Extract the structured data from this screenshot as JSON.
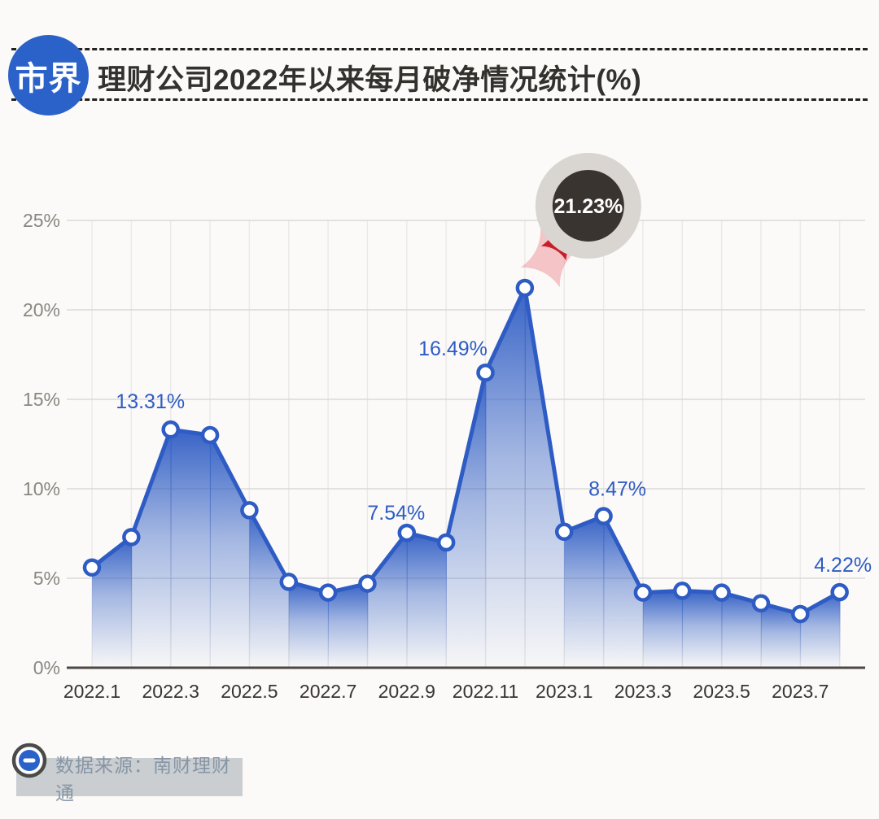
{
  "header": {
    "logo_text": "市界",
    "title": "理财公司2022年以来每月破净情况统计(%)"
  },
  "footer": {
    "source_label": "数据来源：南财理财通"
  },
  "colors": {
    "line": "#2e5cc4",
    "label": "#2e5cc4",
    "logo_blue": "#2b62c9",
    "callout_ring": "#d9d6d1",
    "callout_inner": "#3a3430",
    "callout_text": "#ffffff",
    "spark_red": "#c81d2b",
    "spark_pink": "rgba(235,130,140,0.45)",
    "grid_h": "#dcdad8",
    "grid_v": "#eceae8",
    "axis": "#4c4745",
    "ytick": "#8b8681",
    "xtick": "#3a3330"
  },
  "chart_data": {
    "type": "area",
    "title": "理财公司2022年以来每月破净情况统计(%)",
    "x": [
      "2022.1",
      "2022.2",
      "2022.3",
      "2022.4",
      "2022.5",
      "2022.6",
      "2022.7",
      "2022.8",
      "2022.9",
      "2022.10",
      "2022.11",
      "2022.12",
      "2023.1",
      "2023.2",
      "2023.3",
      "2023.4",
      "2023.5",
      "2023.6",
      "2023.7",
      "2023.8"
    ],
    "values": [
      5.6,
      7.3,
      13.31,
      13.0,
      8.8,
      4.8,
      4.2,
      4.7,
      7.54,
      7.0,
      16.49,
      21.23,
      7.6,
      8.47,
      4.2,
      4.3,
      4.2,
      3.6,
      3.0,
      4.22
    ],
    "ylim": [
      0,
      25
    ],
    "ytick_step": 5,
    "yticks": [
      "0%",
      "5%",
      "10%",
      "15%",
      "20%",
      "25%"
    ],
    "xticks": [
      "2022.1",
      "2022.3",
      "2022.5",
      "2022.7",
      "2022.9",
      "2022.11",
      "2023.1",
      "2023.3",
      "2023.5",
      "2023.7"
    ],
    "grid": true,
    "legend": "none",
    "point_labels": [
      {
        "index": 2,
        "text": "13.31%"
      },
      {
        "index": 8,
        "text": "7.54%"
      },
      {
        "index": 10,
        "text": "16.49%"
      },
      {
        "index": 13,
        "text": "8.47%"
      },
      {
        "index": 19,
        "text": "4.22%"
      }
    ],
    "callout": {
      "index": 11,
      "text": "21.23%"
    }
  }
}
